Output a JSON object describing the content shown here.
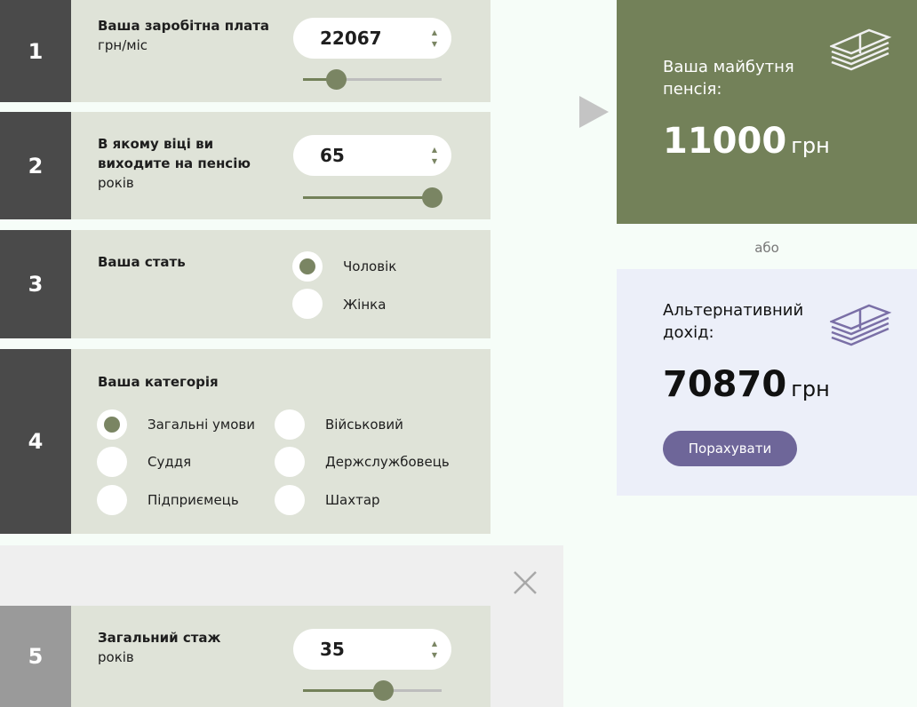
{
  "steps": [
    {
      "number": "1",
      "label": "Ваша заробітна плата",
      "unit": "грн/міс",
      "value": "22067",
      "slider_fraction": 0.24
    },
    {
      "number": "2",
      "label": "В якому віці ви виходите на пенсію",
      "unit": "років",
      "value": "65",
      "slider_fraction": 0.93
    },
    {
      "number": "3",
      "label": "Ваша стать",
      "options": [
        "Чоловік",
        "Жінка"
      ],
      "selected": "Чоловік"
    },
    {
      "number": "4",
      "label": "Ваша категорія",
      "options": [
        "Загальні умови",
        "Військовий",
        "Суддя",
        "Держслужбовець",
        "Підприємець",
        "Шахтар"
      ],
      "selected": "Загальні умови"
    },
    {
      "number": "5",
      "label": "Загальний стаж",
      "unit": "років",
      "value": "35",
      "slider_fraction": 0.58
    }
  ],
  "result": {
    "title": "Ваша майбутня пенсія:",
    "amount": "11000",
    "currency": "грн",
    "icon": "money-stack-icon"
  },
  "or_label": "або",
  "alternative": {
    "title": "Альтернативний дохід:",
    "amount": "70870",
    "currency": "грн",
    "button": "Порахувати",
    "icon": "money-stack-icon"
  },
  "colors": {
    "accent_green": "#738159",
    "accent_purple": "#6e6699",
    "card_bg": "#dfe3d8"
  }
}
